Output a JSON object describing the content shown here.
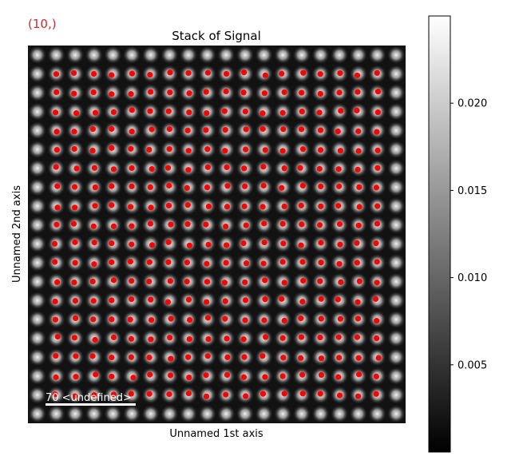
{
  "figure": {
    "index_label": "(10,)",
    "title": "Stack of  Signal",
    "xlabel": "Unnamed 1st axis",
    "ylabel": "Unnamed 2nd axis",
    "scalebar_label": "70 <undefined>"
  },
  "colors": {
    "index_label": "#d62728",
    "marker": "#ff0000",
    "text": "#000000",
    "scalebar": "#ffffff",
    "background_image": "#121212"
  },
  "colorbar": {
    "colormap": "gray",
    "range": [
      0.0,
      0.025
    ],
    "ticks": [
      {
        "value": 0.005,
        "label": "0.005"
      },
      {
        "value": 0.01,
        "label": "0.010"
      },
      {
        "value": 0.015,
        "label": "0.015"
      },
      {
        "value": 0.02,
        "label": "0.020"
      }
    ]
  },
  "chart_data": {
    "type": "heatmap",
    "title": "Stack of  Signal",
    "xlabel": "Unnamed 1st axis",
    "ylabel": "Unnamed 2nd axis",
    "grid": false,
    "lattice": {
      "columns": 20,
      "rows": 20,
      "peak_intensity": 0.022,
      "background_intensity": 0.002
    },
    "markers": {
      "series": "peak positions",
      "color": "#ff0000",
      "columns": 18,
      "rows": 18,
      "first_column": 1,
      "first_row": 1
    }
  }
}
